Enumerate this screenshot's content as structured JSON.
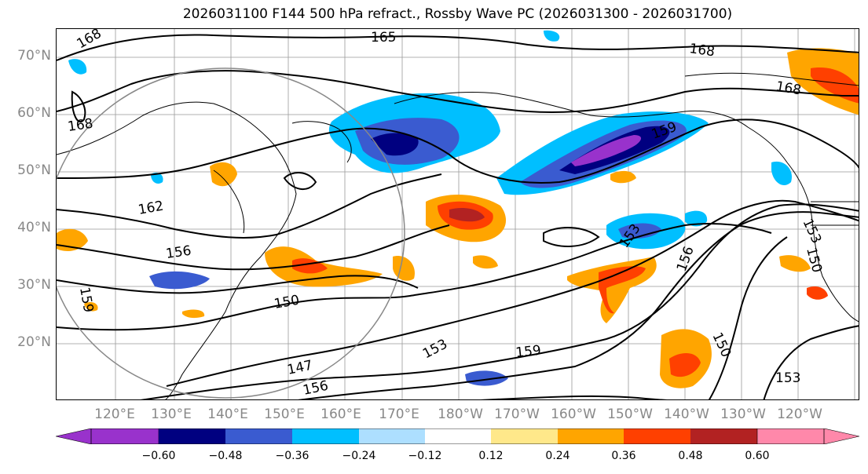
{
  "title": "2026031100 F144 500 hPa refract., Rossby Wave PC (2026031300 - 2026031700)",
  "lat_labels": [
    "70°N",
    "60°N",
    "50°N",
    "40°N",
    "30°N",
    "20°N"
  ],
  "lon_labels": [
    "120°E",
    "130°E",
    "140°E",
    "150°E",
    "160°E",
    "170°E",
    "180°W",
    "170°W",
    "160°W",
    "150°W",
    "140°W",
    "130°W",
    "120°W"
  ],
  "contour_labels": [
    "168",
    "165",
    "168",
    "168",
    "168",
    "162",
    "156",
    "159",
    "150",
    "147",
    "156",
    "153",
    "159",
    "153",
    "156",
    "150",
    "150",
    "153",
    "153",
    "159"
  ],
  "colorbar": {
    "ticks": [
      "−0.60",
      "−0.48",
      "−0.36",
      "−0.24",
      "−0.12",
      "0.12",
      "0.24",
      "0.36",
      "0.48",
      "0.60"
    ],
    "colors": [
      "#9932CC",
      "#000080",
      "#3A5BD0",
      "#00BFFF",
      "#ADDFFF",
      "#FFFFFF",
      "#FFE88A",
      "#FFA500",
      "#FF4000",
      "#B22222",
      "#FF88AA"
    ]
  },
  "colors": {
    "purple": "#9932CC",
    "navy": "#000080",
    "blue": "#3A5BD0",
    "sky": "#00BFFF",
    "light_blue": "#ADDFFF",
    "yellow": "#FFE88A",
    "orange": "#FFA500",
    "red_orange": "#FF4000",
    "dark_red": "#B22222",
    "pink": "#FF88AA"
  }
}
